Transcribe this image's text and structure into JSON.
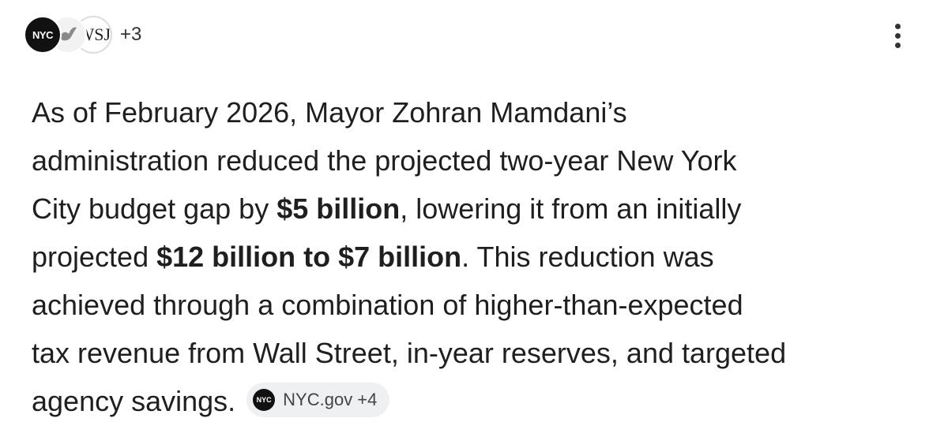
{
  "sources": {
    "icons": [
      "NYC",
      "WSJ"
    ],
    "more": "+3"
  },
  "lines": [
    [
      {
        "text": "As of February 2026, Mayor Zohran Mamdani’s",
        "bold": false
      }
    ],
    [
      {
        "text": "administration reduced the projected two-year New York",
        "bold": false
      }
    ],
    [
      {
        "text": "City budget gap by ",
        "bold": false
      },
      {
        "text": "$5 billion",
        "bold": true
      },
      {
        "text": ", lowering it from an initially",
        "bold": false
      }
    ],
    [
      {
        "text": "projected ",
        "bold": false
      },
      {
        "text": "$12 billion to $7 billion",
        "bold": true
      },
      {
        "text": ". This reduction was",
        "bold": false
      }
    ],
    [
      {
        "text": "achieved through a combination of higher-than-expected",
        "bold": false
      }
    ],
    [
      {
        "text": "tax revenue from Wall Street, in-year reserves, and targeted",
        "bold": false
      }
    ],
    [
      {
        "text": "agency savings.",
        "bold": false
      }
    ]
  ],
  "chip": {
    "icon": "NYC",
    "label": "NYC.gov +4"
  }
}
